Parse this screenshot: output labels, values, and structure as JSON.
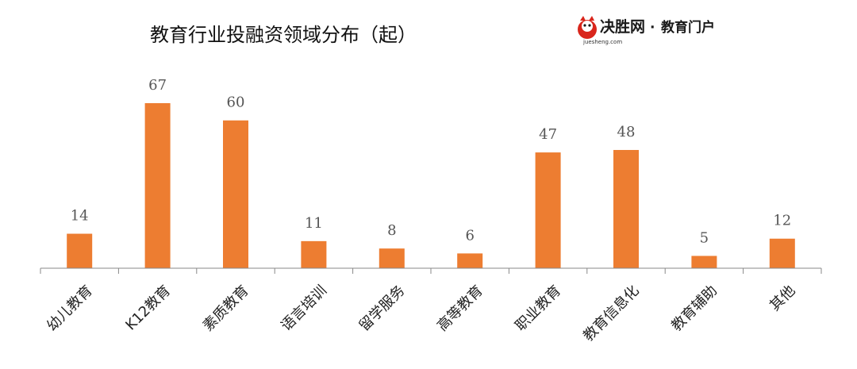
{
  "chart_data": {
    "type": "bar",
    "title": "教育行业投融资领域分布（起）",
    "categories": [
      "幼儿教育",
      "K12教育",
      "素质教育",
      "语言培训",
      "留学服务",
      "高等教育",
      "职业教育",
      "教育信息化",
      "教育辅助",
      "其他"
    ],
    "values": [
      14,
      67,
      60,
      11,
      8,
      6,
      47,
      48,
      5,
      12
    ],
    "ylim": [
      0,
      70
    ],
    "grid": false,
    "bar_color": "#ED7D31"
  },
  "logo": {
    "name": "决胜网",
    "domain": "juesheng.com",
    "separator": "·",
    "tagline": "教育门户"
  },
  "colors": {
    "axis": "#888888",
    "logo_accent": "#D9261C"
  }
}
